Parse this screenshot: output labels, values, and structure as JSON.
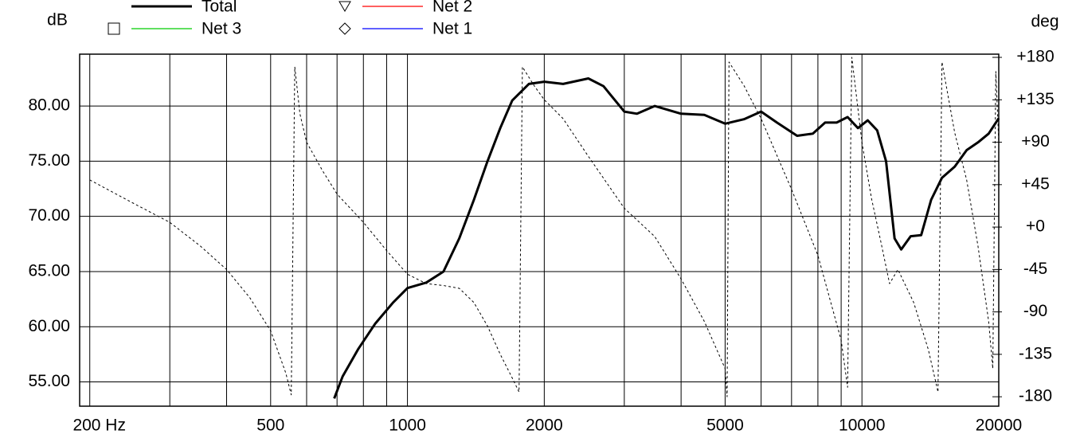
{
  "chart_data": {
    "type": "line",
    "x_scale": "log",
    "y_label": "dB",
    "y2_label": "deg",
    "xlim": [
      190,
      20000
    ],
    "xticks": [
      {
        "value": 200,
        "label": "200 Hz"
      },
      500,
      1000,
      2000,
      5000,
      10000,
      20000
    ],
    "xgrid": [
      300,
      400,
      600,
      700,
      800,
      900,
      3000,
      4000,
      6000,
      7000,
      8000,
      9000
    ],
    "ylim": [
      52.8,
      84.7
    ],
    "yticks": [
      {
        "value": 55,
        "label": "55.00"
      },
      {
        "value": 60,
        "label": "60.00"
      },
      {
        "value": 65,
        "label": "65.00"
      },
      {
        "value": 70,
        "label": "70.00"
      },
      {
        "value": 75,
        "label": "75.00"
      },
      {
        "value": 80,
        "label": "80.00"
      }
    ],
    "y2lim": [
      -190,
      183.4
    ],
    "y2ticks": [
      -180,
      -135,
      -90,
      -45,
      {
        "value": 0,
        "label": "+0"
      },
      {
        "value": 45,
        "label": "+45"
      },
      {
        "value": 90,
        "label": "+90"
      },
      {
        "value": 135,
        "label": "+135"
      },
      {
        "value": 180,
        "label": "+180"
      }
    ],
    "grid": true,
    "legend": [
      {
        "name": "Total",
        "color": "#000000",
        "marker": "none"
      },
      {
        "name": "Net 2",
        "color": "#ff0000",
        "marker": "triangle"
      },
      {
        "name": "Net 3",
        "color": "#00cc00",
        "marker": "square"
      },
      {
        "name": "Net 1",
        "color": "#0000ff",
        "marker": "diamond"
      }
    ],
    "series": [
      {
        "name": "Total",
        "color": "#000000",
        "x": [
          690,
          720,
          780,
          850,
          930,
          1000,
          1100,
          1200,
          1300,
          1400,
          1500,
          1600,
          1700,
          1850,
          2000,
          2200,
          2500,
          2700,
          3000,
          3200,
          3500,
          4000,
          4500,
          5000,
          5500,
          6000,
          6500,
          7200,
          7800,
          8300,
          8800,
          9300,
          9800,
          10300,
          10800,
          11300,
          11800,
          12200,
          12800,
          13500,
          14200,
          15000,
          16000,
          17000,
          18000,
          19000,
          20000
        ],
        "values": [
          53.5,
          55.5,
          58,
          60.3,
          62.2,
          63.5,
          64,
          65,
          68,
          71.5,
          75,
          78,
          80.5,
          82,
          82.2,
          82,
          82.5,
          81.8,
          79.5,
          79.3,
          80,
          79.3,
          79.2,
          78.4,
          78.8,
          79.5,
          78.5,
          77.3,
          77.5,
          78.5,
          78.5,
          79,
          78,
          78.7,
          77.8,
          75,
          68,
          67,
          68.2,
          68.3,
          71.5,
          73.5,
          74.5,
          76,
          76.7,
          77.5,
          78.9
        ]
      },
      {
        "color": "#000000",
        "axis": "y2",
        "dashed": true,
        "x": [
          200,
          250,
          300,
          350,
          400,
          450,
          500,
          540,
          555,
          565,
          580,
          600,
          650,
          700,
          800,
          900,
          1000,
          1100,
          1200,
          1300,
          1400,
          1500,
          1600,
          1700,
          1760,
          1790,
          1900,
          2000,
          2200,
          2500,
          3000,
          3500,
          4000,
          4500,
          5000,
          5050,
          5100,
          5500,
          6000,
          7000,
          8000,
          9000,
          9300,
          9500,
          10000,
          10500,
          11000,
          11500,
          12000,
          13000,
          14000,
          14700,
          15000,
          16000,
          17000,
          18000,
          19000,
          19400,
          19700,
          20000
        ],
        "values": [
          50,
          25,
          5,
          -20,
          -45,
          -75,
          -110,
          -155,
          -178,
          170,
          120,
          90,
          60,
          35,
          5,
          -25,
          -50,
          -60,
          -62,
          -65,
          -80,
          -105,
          -135,
          -160,
          -175,
          170,
          150,
          135,
          115,
          75,
          20,
          -10,
          -55,
          -100,
          -150,
          -180,
          175,
          150,
          115,
          40,
          -30,
          -120,
          -170,
          180,
          90,
          30,
          -15,
          -60,
          -45,
          -80,
          -130,
          -175,
          175,
          100,
          50,
          -20,
          -100,
          -150,
          165,
          90
        ]
      }
    ]
  }
}
